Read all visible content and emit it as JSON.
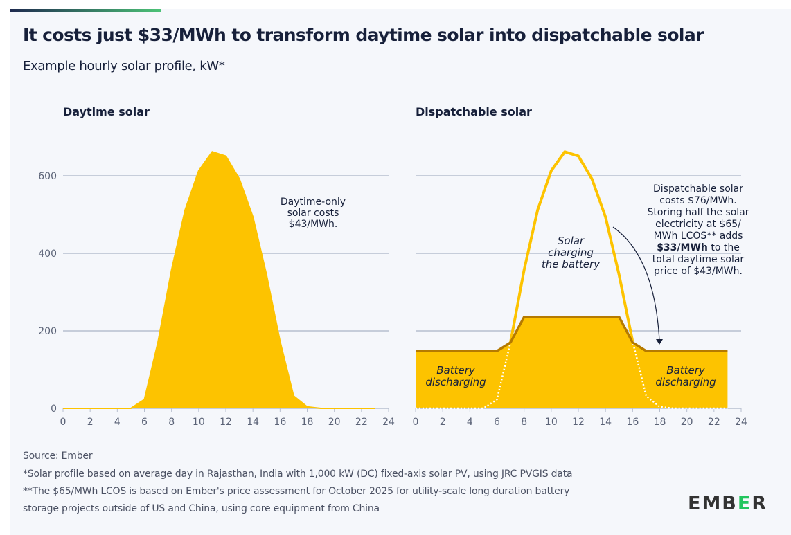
{
  "header": {
    "title": "It costs just $33/MWh to transform daytime solar into dispatchable solar",
    "subtitle": "Example hourly solar profile, kW*"
  },
  "footer": {
    "source": "Source: Ember",
    "note1": "*Solar profile based on average day in Rajasthan, India with 1,000 kW (DC) fixed-axis solar PV, using JRC PVGIS data",
    "note2a": "**The $65/MWh LCOS is based on Ember's price assessment for October 2025 for utility-scale long duration battery",
    "note2b": "storage projects outside of US and China, using core equipment from China"
  },
  "logo": {
    "text": "EMBER",
    "accent": "#22c55e"
  },
  "colors": {
    "solar": "#fdc300",
    "solar_line": "#fdc300",
    "dispatch_line": "#b57a00",
    "grid": "#b7bfcf",
    "axis_text": "#5b6377"
  },
  "chart_data": [
    {
      "type": "area",
      "title": "Daytime solar",
      "xlim": [
        0,
        24
      ],
      "ylim": [
        0,
        700
      ],
      "xticks": [
        0,
        2,
        4,
        6,
        8,
        10,
        12,
        14,
        16,
        18,
        20,
        22,
        24
      ],
      "yticks": [
        0,
        200,
        400,
        600
      ],
      "grid": true,
      "x": [
        0,
        1,
        2,
        3,
        4,
        5,
        6,
        7,
        8,
        9,
        10,
        11,
        12,
        13,
        14,
        15,
        16,
        17,
        18,
        19,
        20,
        21,
        22,
        23
      ],
      "series": [
        {
          "values": [
            0,
            0,
            0,
            0,
            0,
            0,
            23,
            171,
            357,
            512,
            613,
            662,
            651,
            592,
            494,
            345,
            173,
            32,
            4,
            0,
            0,
            0,
            0,
            0
          ]
        }
      ],
      "annotations": [
        "Daytime-only",
        "solar costs",
        "$43/MWh."
      ]
    },
    {
      "type": "area",
      "title": "Dispatchable solar",
      "xlim": [
        0,
        24
      ],
      "ylim": [
        0,
        700
      ],
      "xticks": [
        0,
        2,
        4,
        6,
        8,
        10,
        12,
        14,
        16,
        18,
        20,
        22,
        24
      ],
      "yticks": [
        0,
        200,
        400,
        600
      ],
      "grid": true,
      "x": [
        0,
        1,
        2,
        3,
        4,
        5,
        6,
        7,
        8,
        9,
        10,
        11,
        12,
        13,
        14,
        15,
        16,
        17,
        18,
        19,
        20,
        21,
        22,
        23
      ],
      "series": [
        {
          "values": [
            0,
            0,
            0,
            0,
            0,
            0,
            23,
            171,
            357,
            512,
            613,
            662,
            651,
            592,
            494,
            345,
            173,
            32,
            4,
            0,
            0,
            0,
            0,
            0
          ]
        },
        {
          "values": [
            148,
            148,
            148,
            148,
            148,
            148,
            148,
            170,
            236,
            236,
            236,
            236,
            236,
            236,
            236,
            236,
            170,
            148,
            148,
            148,
            148,
            148,
            148,
            148
          ]
        }
      ],
      "labels": {
        "charging": [
          "Solar",
          "charging",
          "the battery"
        ],
        "discharging_left": [
          "Battery",
          "discharging"
        ],
        "discharging_right": [
          "Battery",
          "discharging"
        ]
      },
      "annotation": [
        "Dispatchable solar",
        "costs $76/MWh.",
        "Storing half the solar",
        "electricity at $65/",
        "MWh LCOS** adds",
        "$33/MWh",
        " to the",
        "total daytime solar",
        "price of $43/MWh."
      ]
    }
  ]
}
